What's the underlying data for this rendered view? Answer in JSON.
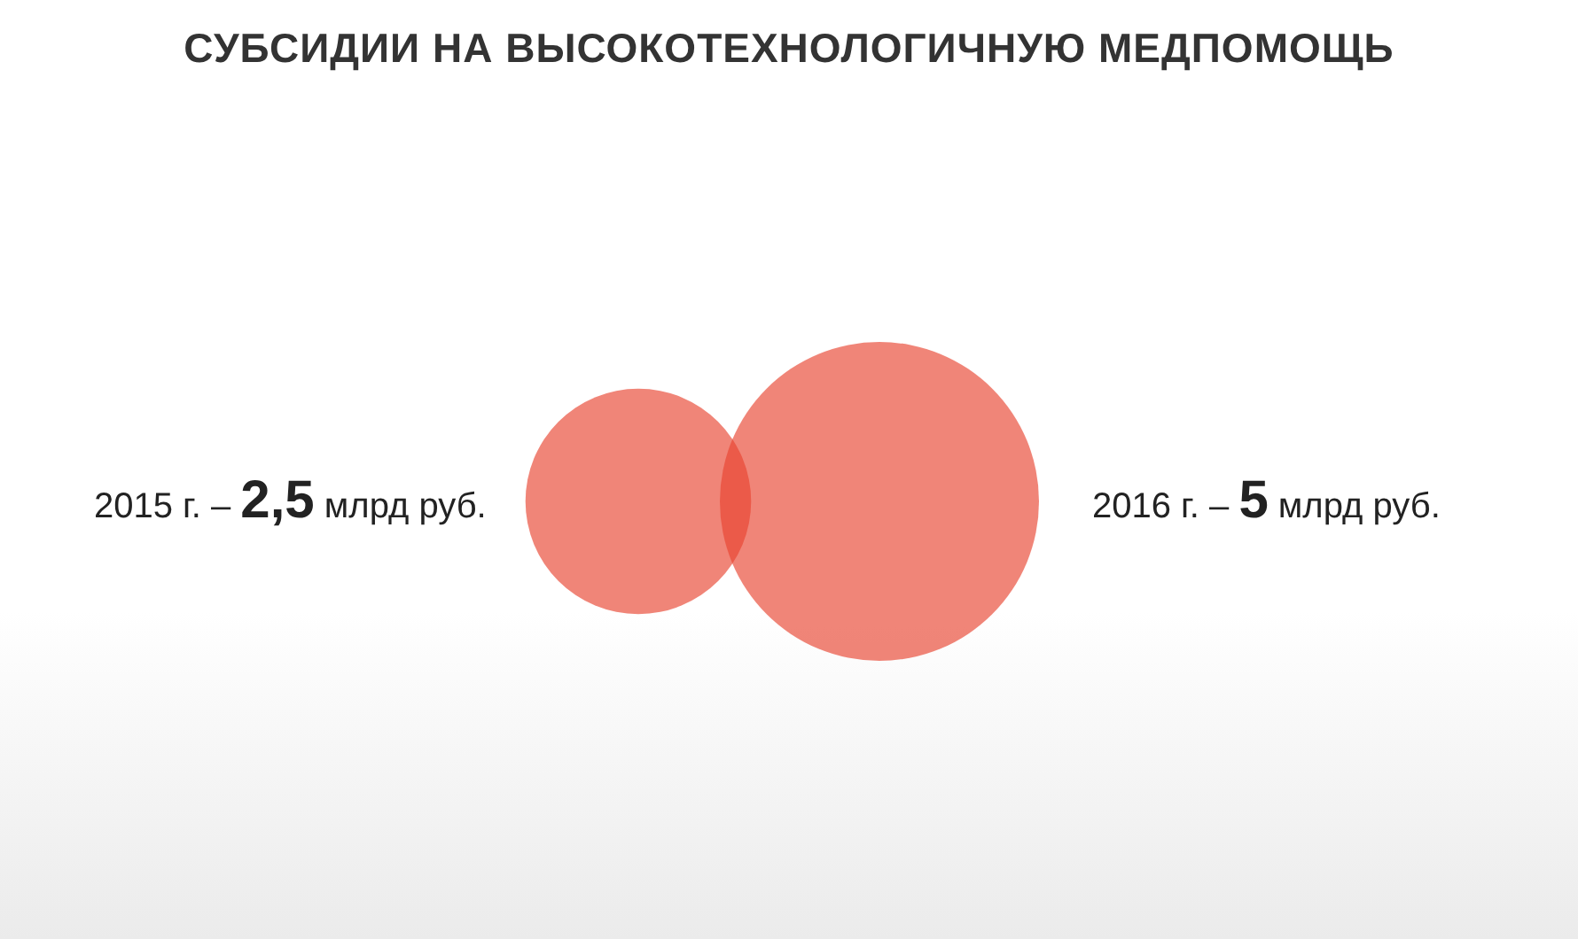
{
  "chart_data": {
    "type": "other",
    "title": "СУБСИДИИ НА ВЫСОКОТЕХНОЛОГИЧНУЮ МЕДПОМОЩЬ",
    "categories": [
      "2015 г. –",
      "2016 г. –"
    ],
    "series": [
      {
        "color": "#e8432f",
        "values": [
          2.5,
          5
        ],
        "value_labels": [
          "2,5 млрд руб.",
          "5 млрд руб."
        ]
      }
    ],
    "legend": false
  }
}
